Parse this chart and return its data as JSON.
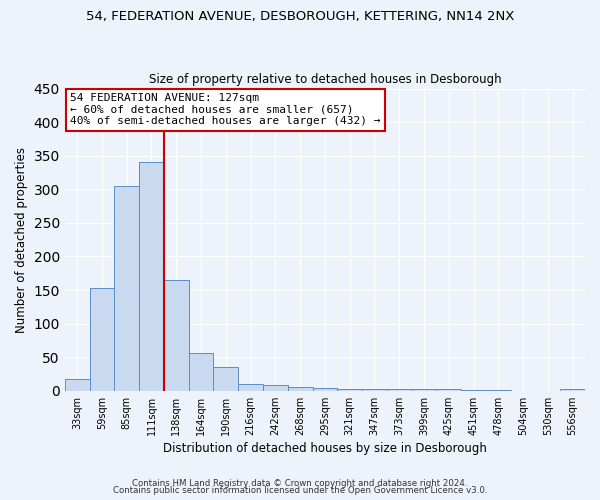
{
  "title": "54, FEDERATION AVENUE, DESBOROUGH, KETTERING, NN14 2NX",
  "subtitle": "Size of property relative to detached houses in Desborough",
  "xlabel": "Distribution of detached houses by size in Desborough",
  "ylabel": "Number of detached properties",
  "bin_labels": [
    "33sqm",
    "59sqm",
    "85sqm",
    "111sqm",
    "138sqm",
    "164sqm",
    "190sqm",
    "216sqm",
    "242sqm",
    "268sqm",
    "295sqm",
    "321sqm",
    "347sqm",
    "373sqm",
    "399sqm",
    "425sqm",
    "451sqm",
    "478sqm",
    "504sqm",
    "530sqm",
    "556sqm"
  ],
  "bar_heights": [
    17,
    153,
    305,
    341,
    165,
    57,
    35,
    10,
    8,
    5,
    4,
    3,
    2,
    2,
    2,
    2,
    1,
    1,
    0,
    0,
    2
  ],
  "bar_color": "#c9d9f0",
  "bar_edge_color": "#5b8ec4",
  "vline_color": "#cc0000",
  "ylim": [
    0,
    450
  ],
  "annotation_line1": "54 FEDERATION AVENUE: 127sqm",
  "annotation_line2": "← 60% of detached houses are smaller (657)",
  "annotation_line3": "40% of semi-detached houses are larger (432) →",
  "annotation_box_color": "#cc0000",
  "footer_line1": "Contains HM Land Registry data © Crown copyright and database right 2024.",
  "footer_line2": "Contains public sector information licensed under the Open Government Licence v3.0.",
  "background_color": "#eef2fa",
  "grid_color": "#ffffff"
}
